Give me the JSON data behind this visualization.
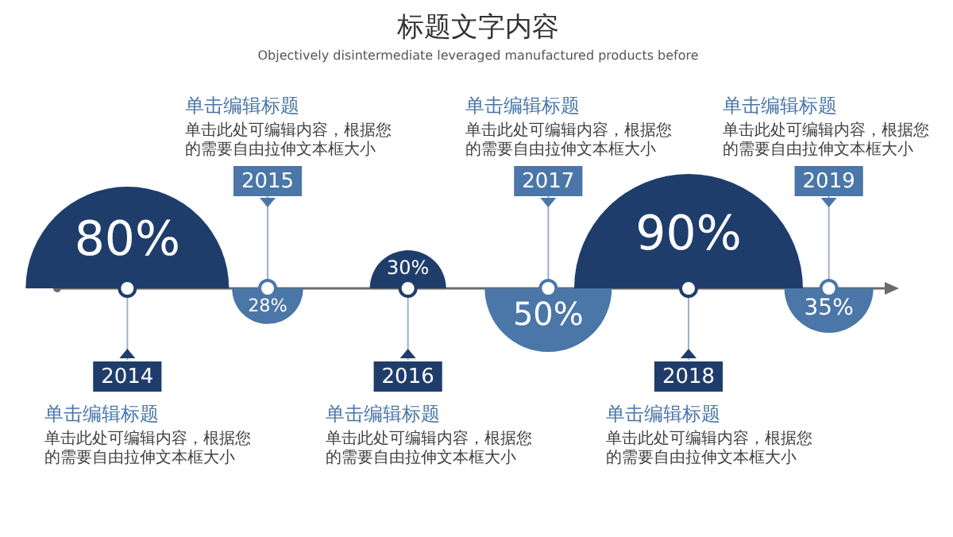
{
  "chart_data": {
    "type": "other",
    "title": "标题文字内容",
    "subtitle": "Objectively disintermediate leveraged manufactured products before",
    "categories": [
      "2014",
      "2015",
      "2016",
      "2017",
      "2018",
      "2019"
    ],
    "values": [
      80,
      28,
      30,
      50,
      90,
      35
    ],
    "value_labels": [
      "80%",
      "28%",
      "30%",
      "50%",
      "90%",
      "35%"
    ],
    "colors": [
      "#1f3d6b",
      "#4a76a8",
      "#1f3d6b",
      "#4a76a8",
      "#1f3d6b",
      "#4a76a8"
    ],
    "annotations": [
      "单击编辑标题",
      "单击此处可编辑内容，根据您的需要自由拉伸文本框大小",
      "单击编辑标题",
      "单击此处可编辑内容，根据您的需要自由拉伸文本框大小",
      "单击编辑标题",
      "单击此处可编辑内容，根据您的需要自由拉伸文本框大小",
      "单击编辑标题",
      "单击此处可编辑内容，根据您的需要自由拉伸文本框大小",
      "单击编辑标题",
      "单击此处可编辑内容，根据您的需要自由拉伸文本框大小",
      "单击编辑标题",
      "单击此处可编辑内容，根据您的需要自由拉伸文本框大小"
    ]
  }
}
